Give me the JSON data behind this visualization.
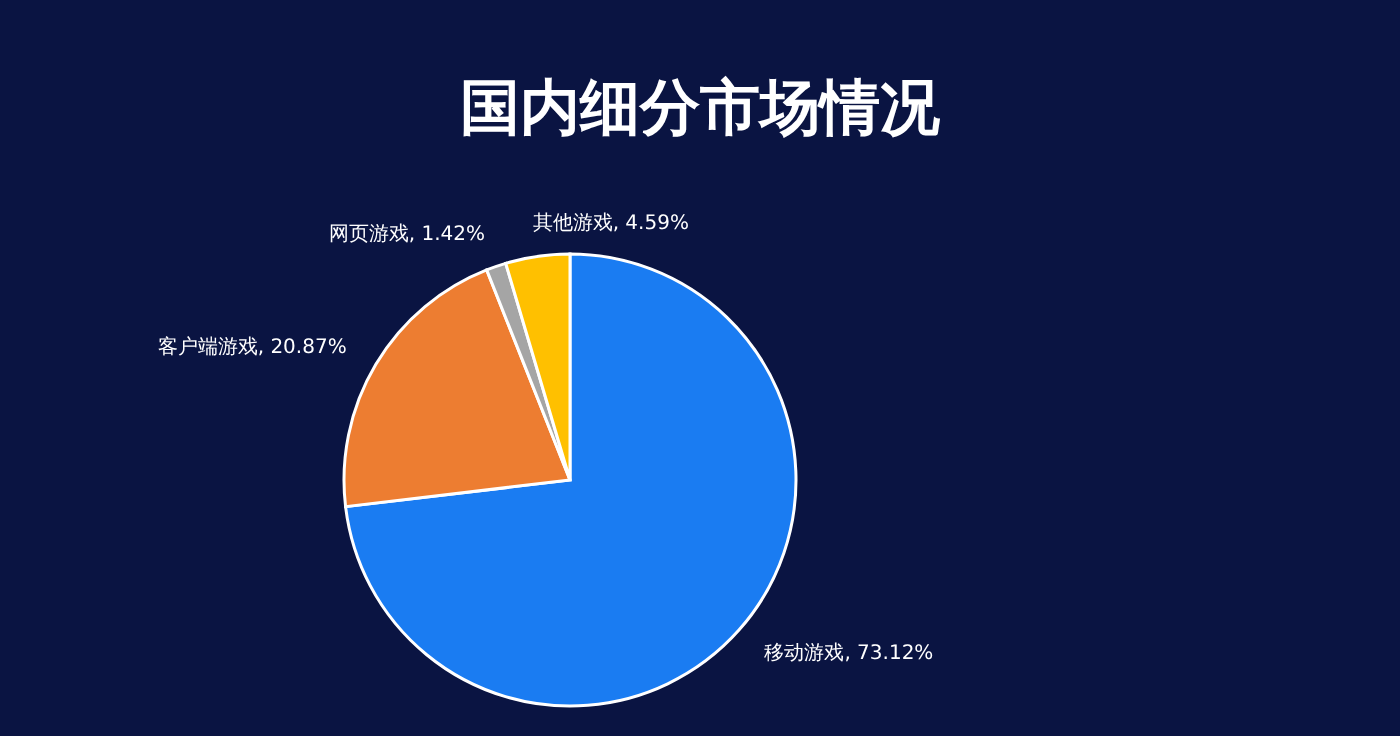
{
  "chart_data": {
    "type": "pie",
    "title": "国内细分市场情况",
    "categories": [
      "移动游戏",
      "客户端游戏",
      "网页游戏",
      "其他游戏"
    ],
    "values": [
      73.12,
      20.87,
      1.42,
      4.59
    ],
    "colors": [
      "#1a7cf2",
      "#ed7d31",
      "#a5a5a5",
      "#ffc000"
    ],
    "value_labels": [
      "73.12%",
      "20.87%",
      "1.42%",
      "4.59%"
    ]
  }
}
